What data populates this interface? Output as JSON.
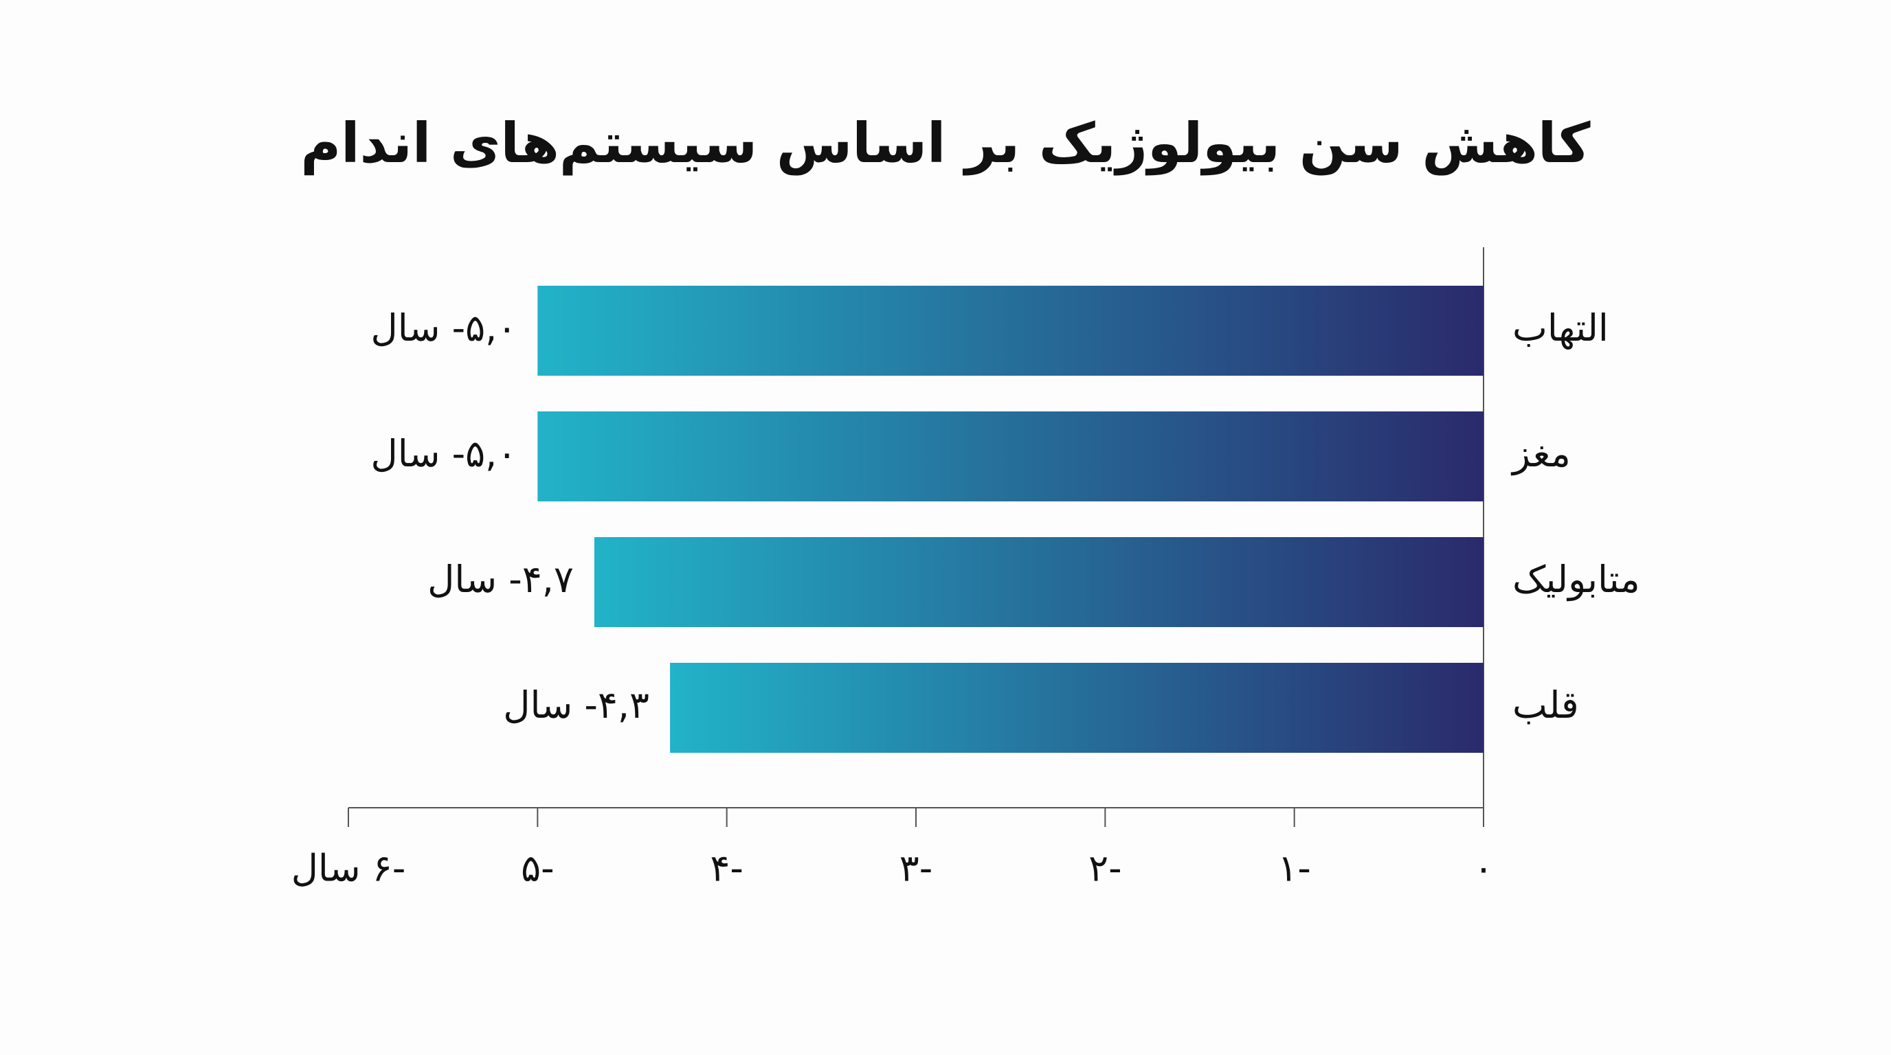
{
  "chart_data": {
    "type": "bar",
    "orientation": "horizontal",
    "title": "کاهش سن بیولوژیک بر اساس سیستم‌های اندام",
    "categories": [
      "التهاب",
      "مغز",
      "متابولیک",
      "قلب"
    ],
    "values": [
      -5.0,
      -5.0,
      -4.7,
      -4.3
    ],
    "value_labels": [
      "۵,۰- سال",
      "۵,۰- سال",
      "۴,۷- سال",
      "۴,۳- سال"
    ],
    "colors": [
      "#22b3c9",
      "#2a2a6c"
    ],
    "xlim": [
      -6,
      0
    ],
    "xticks": [
      {
        "value": -6,
        "label": "-۶ سال"
      },
      {
        "value": -5,
        "label": "-۵"
      },
      {
        "value": -4,
        "label": "-۴"
      },
      {
        "value": -3,
        "label": "-۳"
      },
      {
        "value": -2,
        "label": "-۲"
      },
      {
        "value": -1,
        "label": "-۱"
      },
      {
        "value": 0,
        "label": "۰"
      }
    ]
  }
}
